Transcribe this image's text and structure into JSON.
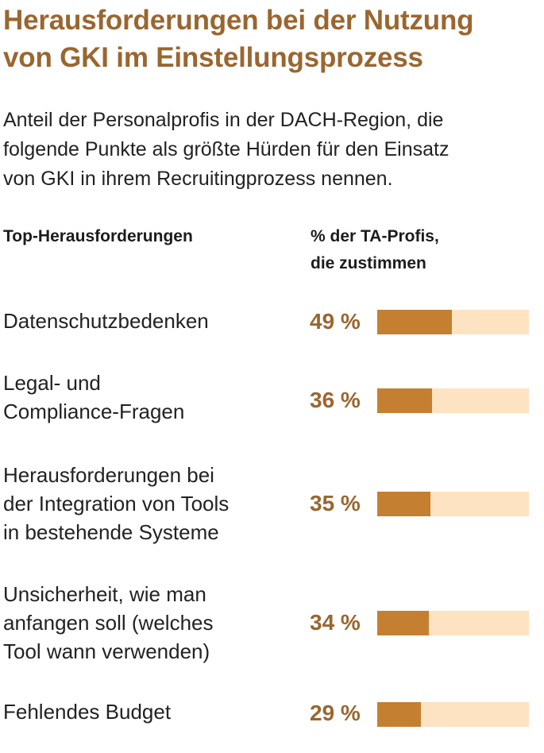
{
  "title_lines": [
    "Herausforderungen bei der Nutzung",
    "von GKI im Einstellungsprozess"
  ],
  "subtitle_lines": [
    "Anteil der Personalprofis in der DACH-Region, die",
    "folgende Punkte als größte Hürden für den Einsatz",
    "von GKI in ihrem Recruitingprozess nennen."
  ],
  "columns": {
    "left": [
      "Top-Herausforderungen"
    ],
    "right": [
      "% der TA-Profis,",
      "die zustimmen"
    ]
  },
  "colors": {
    "title": "#9a6630",
    "bar_fill": "#c47f30",
    "bar_track": "#fde3c1"
  },
  "chart_data": {
    "type": "bar",
    "orientation": "horizontal",
    "categories": [
      "Datenschutzbedenken",
      "Legal- und Compliance-Fragen",
      "Herausforderungen bei der Integration von Tools in bestehende Systeme",
      "Unsicherheit, wie man anfangen soll (welches Tool wann verwenden)",
      "Fehlendes Budget"
    ],
    "category_lines": [
      [
        "Datenschutzbedenken"
      ],
      [
        "Legal- und",
        "Compliance-Fragen"
      ],
      [
        "Herausforderungen bei",
        "der Integration von Tools",
        "in bestehende Systeme"
      ],
      [
        "Unsicherheit, wie man",
        "anfangen soll (welches",
        "Tool wann verwenden)"
      ],
      [
        "Fehlendes Budget"
      ]
    ],
    "values": [
      49,
      36,
      35,
      34,
      29
    ],
    "value_labels": [
      "49 %",
      "36 %",
      "35 %",
      "34 %",
      "29 %"
    ],
    "xlim": [
      0,
      100
    ],
    "grid": false,
    "legend": "none"
  }
}
